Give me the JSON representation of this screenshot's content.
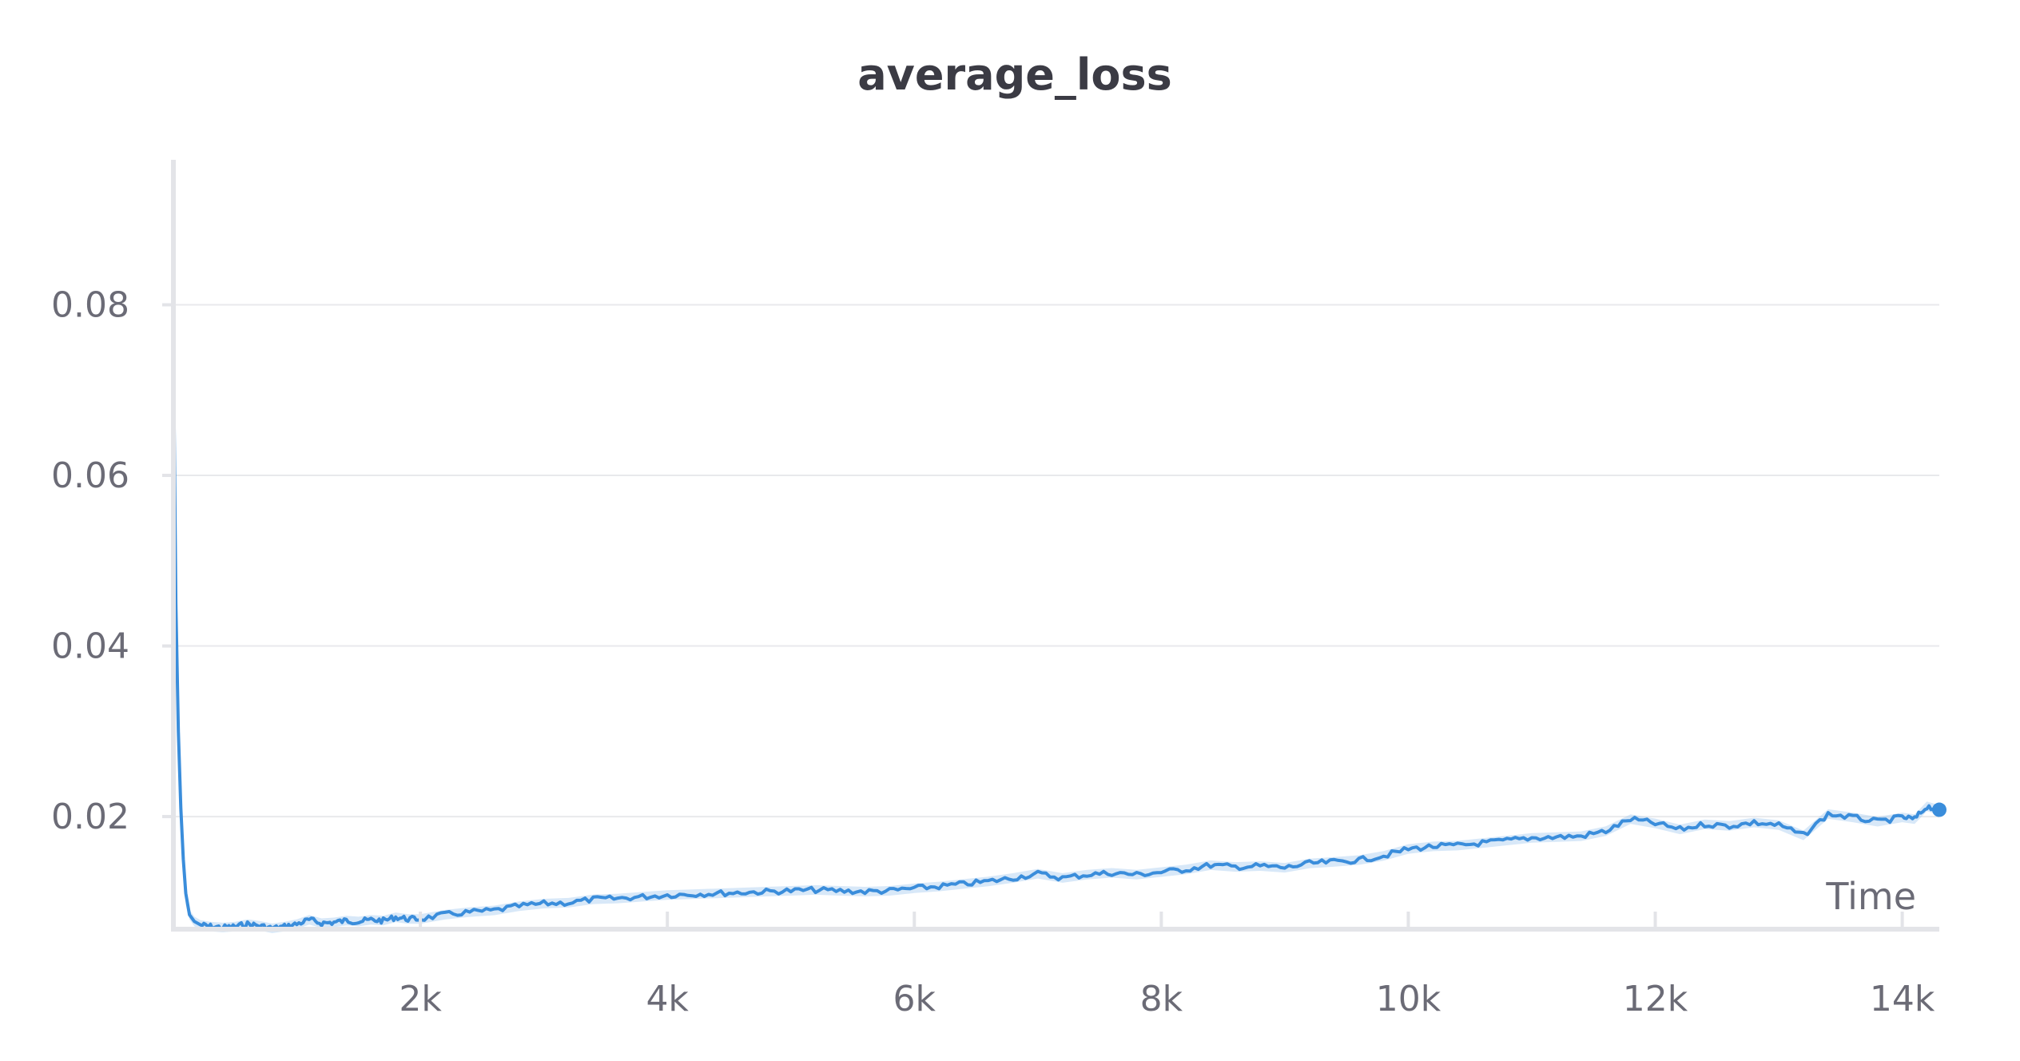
{
  "chart_data": {
    "type": "line",
    "title": "average_loss",
    "xlabel": "Time",
    "ylabel": "",
    "xlim": [
      0,
      14300
    ],
    "ylim": [
      0.0068,
      0.097
    ],
    "x_ticks": [
      {
        "value": 2000,
        "label": "2k"
      },
      {
        "value": 4000,
        "label": "4k"
      },
      {
        "value": 6000,
        "label": "6k"
      },
      {
        "value": 8000,
        "label": "8k"
      },
      {
        "value": 10000,
        "label": "10k"
      },
      {
        "value": 12000,
        "label": "12k"
      },
      {
        "value": 14000,
        "label": "14k"
      }
    ],
    "y_ticks": [
      {
        "value": 0.02,
        "label": "0.02"
      },
      {
        "value": 0.04,
        "label": "0.04"
      },
      {
        "value": 0.06,
        "label": "0.06"
      },
      {
        "value": 0.08,
        "label": "0.08"
      }
    ],
    "grid": true,
    "colors": {
      "line": "#3a8ddb",
      "band": "#a9cdef"
    },
    "series": [
      {
        "x": [
          0,
          20,
          40,
          60,
          80,
          100,
          130,
          170,
          220,
          300,
          400,
          500,
          600,
          700,
          800,
          900,
          1000,
          1100,
          1200,
          1300,
          1400,
          1500,
          1600,
          1700,
          1800,
          1900,
          2000,
          2200,
          2400,
          2600,
          2800,
          3000,
          3200,
          3400,
          3600,
          3800,
          4000,
          4200,
          4400,
          4600,
          4800,
          5000,
          5200,
          5400,
          5600,
          5800,
          6000,
          6200,
          6400,
          6600,
          6800,
          7000,
          7200,
          7400,
          7600,
          7800,
          8000,
          8200,
          8400,
          8600,
          8800,
          9000,
          9200,
          9400,
          9600,
          9800,
          10000,
          10200,
          10400,
          10600,
          10800,
          11000,
          11200,
          11400,
          11600,
          11800,
          12000,
          12200,
          12400,
          12600,
          12800,
          13000,
          13200,
          13400,
          13600,
          13800,
          14000,
          14100,
          14200,
          14300
        ],
        "y": [
          0.0755,
          0.045,
          0.03,
          0.021,
          0.015,
          0.011,
          0.0085,
          0.0077,
          0.0073,
          0.0071,
          0.007,
          0.0071,
          0.0074,
          0.0072,
          0.0069,
          0.0071,
          0.0074,
          0.0079,
          0.0075,
          0.0076,
          0.0078,
          0.0077,
          0.0079,
          0.0078,
          0.0082,
          0.008,
          0.008,
          0.0085,
          0.0088,
          0.009,
          0.0095,
          0.0098,
          0.0099,
          0.0103,
          0.0104,
          0.0106,
          0.0108,
          0.0109,
          0.011,
          0.0111,
          0.0112,
          0.0113,
          0.0114,
          0.0113,
          0.0112,
          0.0113,
          0.0116,
          0.0118,
          0.0121,
          0.0124,
          0.0128,
          0.0133,
          0.0128,
          0.0132,
          0.0134,
          0.0132,
          0.0135,
          0.0138,
          0.0143,
          0.0141,
          0.0142,
          0.014,
          0.0145,
          0.0147,
          0.0149,
          0.0154,
          0.0162,
          0.0165,
          0.0166,
          0.0169,
          0.0172,
          0.0175,
          0.0176,
          0.0177,
          0.0183,
          0.0197,
          0.0192,
          0.0185,
          0.0191,
          0.0189,
          0.0193,
          0.019,
          0.0178,
          0.0203,
          0.0199,
          0.0194,
          0.0199,
          0.0197,
          0.0212,
          0.0208
        ]
      }
    ]
  }
}
